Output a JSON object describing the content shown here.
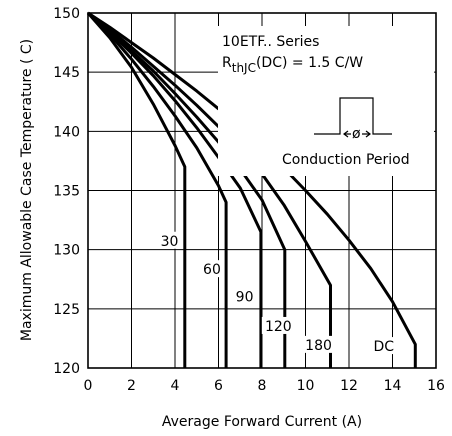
{
  "chart_data": {
    "type": "line",
    "title": "",
    "xlabel": "Average Forward Current (A)",
    "ylabel": "Maximum Allowable Case Temperature ( C)",
    "xlim": [
      0,
      16
    ],
    "ylim": [
      120,
      150
    ],
    "x_ticks": [
      0,
      2,
      4,
      6,
      8,
      10,
      12,
      14,
      16
    ],
    "y_ticks": [
      120,
      125,
      130,
      135,
      140,
      145,
      150
    ],
    "grid": true,
    "annotations": {
      "series_name": "10ETF.. Series",
      "rth_prefix": "R",
      "rth_sub": "thJC",
      "rth_value": "(DC) = 1.5  C/W",
      "phi": "ø",
      "conduction_label": "Conduction Period"
    },
    "series": [
      {
        "name": "30",
        "x": [
          0,
          1,
          2,
          3,
          4,
          4.45,
          4.45
        ],
        "y": [
          150,
          147.9,
          145.4,
          142.3,
          138.8,
          137,
          120
        ]
      },
      {
        "name": "60",
        "x": [
          0,
          1,
          2,
          3,
          4,
          5,
          6,
          6.35,
          6.35
        ],
        "y": [
          150,
          148.2,
          146.1,
          143.8,
          141.3,
          138.6,
          135.4,
          134,
          120
        ]
      },
      {
        "name": "90",
        "x": [
          0,
          1,
          2,
          3,
          4,
          5,
          6,
          7,
          7.95,
          7.95
        ],
        "y": [
          150,
          148.4,
          146.6,
          144.7,
          142.6,
          140.3,
          137.8,
          135.2,
          131.5,
          120
        ]
      },
      {
        "name": "120",
        "x": [
          0,
          1,
          2,
          3,
          4,
          5,
          6,
          7,
          8,
          9.05,
          9.05
        ],
        "y": [
          150,
          148.5,
          146.8,
          145.1,
          143.2,
          141.2,
          139.1,
          136.8,
          134.2,
          130,
          120
        ]
      },
      {
        "name": "180",
        "x": [
          0,
          1,
          2,
          3,
          4,
          5,
          6,
          7,
          8,
          9,
          10,
          11.15,
          11.15
        ],
        "y": [
          150,
          148.6,
          147.1,
          145.5,
          143.9,
          142.2,
          140.4,
          138.5,
          136.4,
          133.8,
          130.7,
          127,
          120
        ]
      },
      {
        "name": "DC",
        "x": [
          0,
          1,
          2,
          3,
          4,
          5,
          6,
          7,
          8,
          9,
          10,
          11,
          12,
          13,
          14,
          15.05,
          15.05
        ],
        "y": [
          150,
          148.8,
          147.5,
          146.2,
          144.8,
          143.4,
          141.9,
          140.3,
          138.6,
          136.9,
          135.0,
          133.0,
          130.8,
          128.4,
          125.6,
          122,
          120
        ]
      }
    ]
  }
}
